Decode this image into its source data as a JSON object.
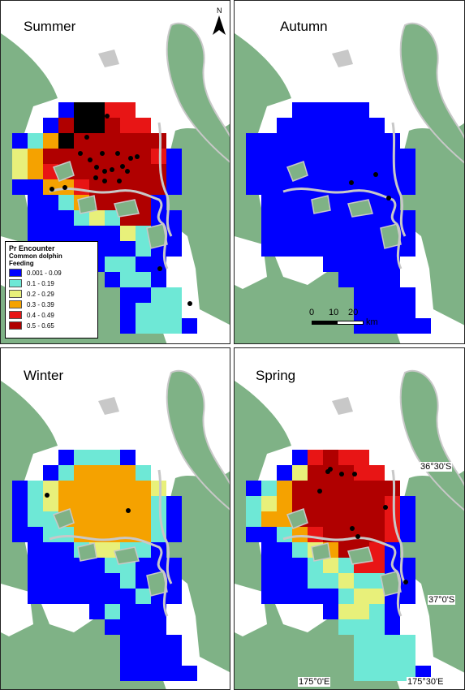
{
  "panels": [
    {
      "id": "summer",
      "label": "Summer",
      "points": [
        [
          113,
          140
        ],
        [
          131,
          142
        ],
        [
          106,
          168
        ],
        [
          98,
          188
        ],
        [
          110,
          196
        ],
        [
          125,
          188
        ],
        [
          144,
          188
        ],
        [
          160,
          194
        ],
        [
          168,
          192
        ],
        [
          118,
          205
        ],
        [
          128,
          210
        ],
        [
          137,
          208
        ],
        [
          150,
          204
        ],
        [
          156,
          210
        ],
        [
          117,
          218
        ],
        [
          128,
          222
        ],
        [
          146,
          222
        ],
        [
          63,
          232
        ],
        [
          79,
          230
        ],
        [
          196,
          330
        ],
        [
          233,
          373
        ]
      ]
    },
    {
      "id": "autumn",
      "label": "Autumn",
      "points": [
        [
          432,
          224
        ],
        [
          462,
          214
        ],
        [
          478,
          243
        ]
      ]
    },
    {
      "id": "winter",
      "label": "Winter",
      "points": [
        [
          57,
          609
        ],
        [
          157,
          628
        ]
      ]
    },
    {
      "id": "spring",
      "label": "Spring",
      "points": [
        [
          406,
          577
        ],
        [
          403,
          580
        ],
        [
          420,
          583
        ],
        [
          436,
          583
        ],
        [
          393,
          604
        ],
        [
          474,
          624
        ],
        [
          433,
          650
        ],
        [
          440,
          660
        ],
        [
          499,
          716
        ]
      ]
    }
  ],
  "legend": {
    "title": "Pr Encounter",
    "subtitle1": "Common dolphin",
    "subtitle2": "Feeding",
    "classes": [
      {
        "label": "0.001 - 0.09",
        "color": "#0000ff"
      },
      {
        "label": "0.1 - 0.19",
        "color": "#6ee8d6"
      },
      {
        "label": "0.2 - 0.29",
        "color": "#e8f07a"
      },
      {
        "label": "0.3 - 0.39",
        "color": "#f5a200"
      },
      {
        "label": "0.4 - 0.49",
        "color": "#e81515"
      },
      {
        "label": "0.5 - 0.65",
        "color": "#b00000"
      }
    ]
  },
  "north_label": "N",
  "scale": {
    "ticks": [
      "0",
      "10",
      "20"
    ],
    "unit": "km"
  },
  "coords": {
    "lat1": "36°30'S",
    "lat2": "37°0'S",
    "lon1": "175°0'E",
    "lon2": "175°30'E"
  },
  "colors": {
    "land": "#7fb286",
    "coast": "#c8c8c8",
    "water": "#ffffff",
    "point": "#000000"
  }
}
